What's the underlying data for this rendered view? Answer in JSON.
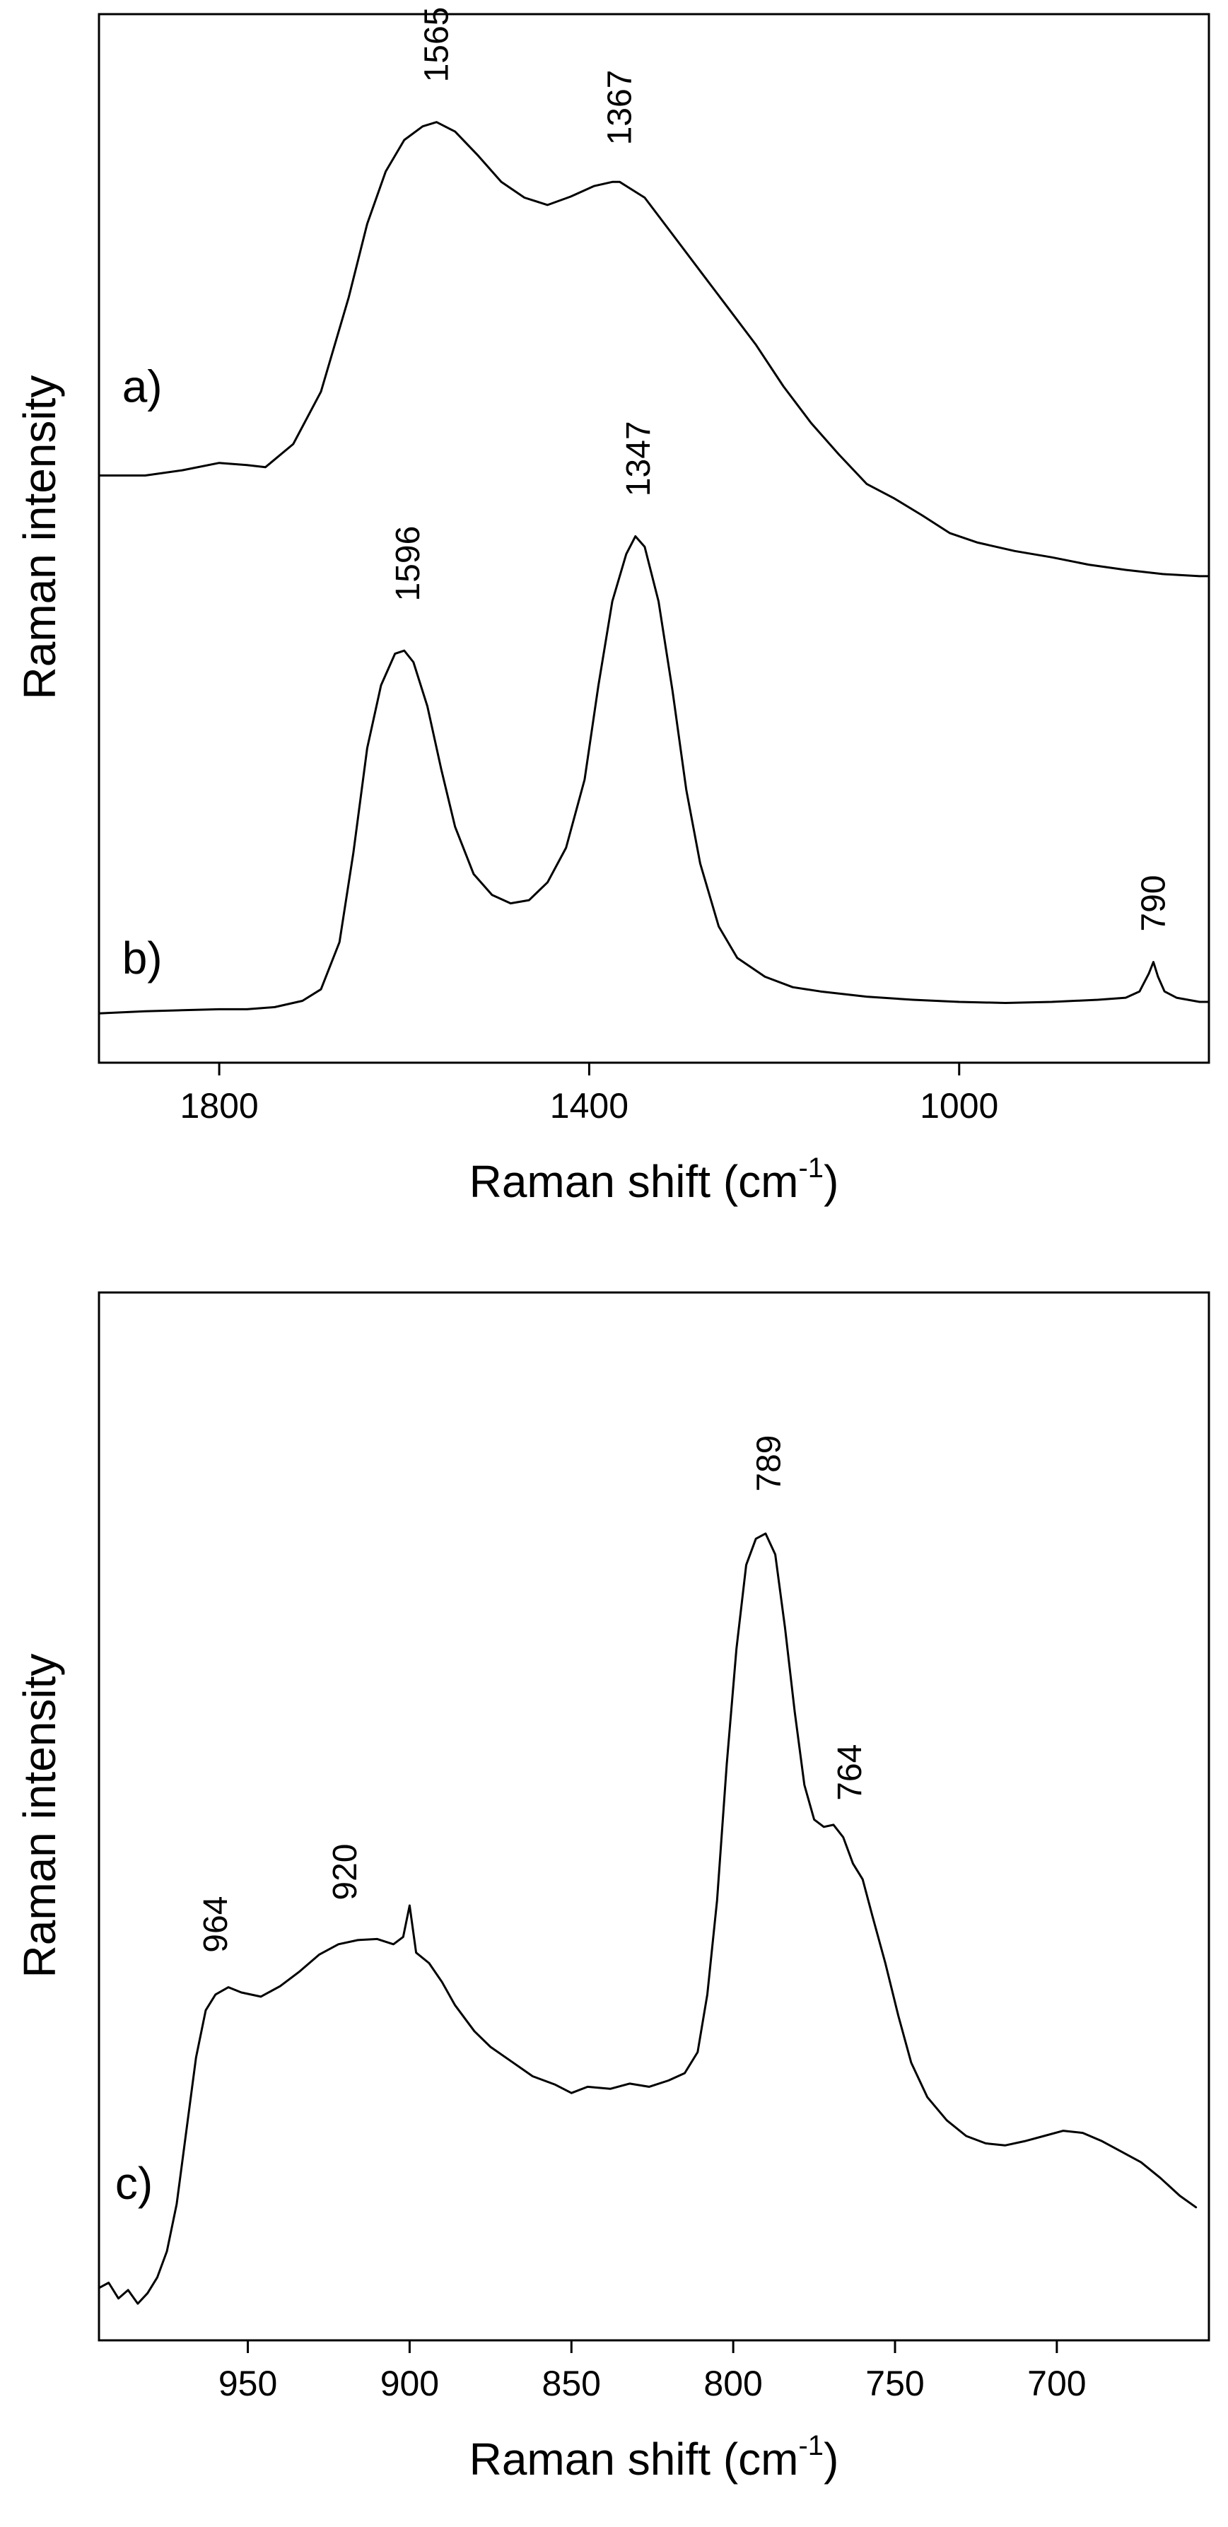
{
  "chart_data": [
    {
      "type": "line",
      "panel": "top",
      "xlabel": "Raman shift (cm",
      "xlabel_sup": "-1",
      "xlabel_close": ")",
      "ylabel": "Raman intensity",
      "xlim": [
        1930,
        730
      ],
      "ylim": [
        0,
        1
      ],
      "x_reversed": true,
      "grid": false,
      "xticks": [
        1800,
        1400,
        1000
      ],
      "series": [
        {
          "name": "a)",
          "label": "a)",
          "label_at": [
            1905,
            0.63
          ],
          "points": [
            [
              1930,
              0.56
            ],
            [
              1880,
              0.56
            ],
            [
              1840,
              0.565
            ],
            [
              1800,
              0.572
            ],
            [
              1770,
              0.57
            ],
            [
              1750,
              0.568
            ],
            [
              1720,
              0.59
            ],
            [
              1690,
              0.64
            ],
            [
              1660,
              0.73
            ],
            [
              1640,
              0.8
            ],
            [
              1620,
              0.85
            ],
            [
              1600,
              0.88
            ],
            [
              1580,
              0.893
            ],
            [
              1565,
              0.897
            ],
            [
              1545,
              0.888
            ],
            [
              1520,
              0.865
            ],
            [
              1495,
              0.84
            ],
            [
              1470,
              0.825
            ],
            [
              1445,
              0.818
            ],
            [
              1420,
              0.826
            ],
            [
              1395,
              0.836
            ],
            [
              1375,
              0.84
            ],
            [
              1367,
              0.84
            ],
            [
              1340,
              0.825
            ],
            [
              1310,
              0.79
            ],
            [
              1280,
              0.755
            ],
            [
              1250,
              0.72
            ],
            [
              1220,
              0.685
            ],
            [
              1190,
              0.645
            ],
            [
              1160,
              0.61
            ],
            [
              1130,
              0.58
            ],
            [
              1100,
              0.552
            ],
            [
              1070,
              0.538
            ],
            [
              1040,
              0.522
            ],
            [
              1010,
              0.505
            ],
            [
              980,
              0.496
            ],
            [
              940,
              0.488
            ],
            [
              900,
              0.482
            ],
            [
              860,
              0.475
            ],
            [
              820,
              0.47
            ],
            [
              780,
              0.466
            ],
            [
              740,
              0.464
            ],
            [
              730,
              0.464
            ]
          ]
        },
        {
          "name": "b)",
          "label": "b)",
          "label_at": [
            1905,
            0.085
          ],
          "points": [
            [
              1930,
              0.047
            ],
            [
              1880,
              0.049
            ],
            [
              1840,
              0.05
            ],
            [
              1800,
              0.051
            ],
            [
              1770,
              0.051
            ],
            [
              1740,
              0.053
            ],
            [
              1710,
              0.059
            ],
            [
              1690,
              0.07
            ],
            [
              1670,
              0.115
            ],
            [
              1655,
              0.2
            ],
            [
              1640,
              0.3
            ],
            [
              1625,
              0.36
            ],
            [
              1610,
              0.39
            ],
            [
              1600,
              0.393
            ],
            [
              1590,
              0.382
            ],
            [
              1575,
              0.34
            ],
            [
              1560,
              0.28
            ],
            [
              1545,
              0.225
            ],
            [
              1525,
              0.18
            ],
            [
              1505,
              0.16
            ],
            [
              1485,
              0.152
            ],
            [
              1465,
              0.155
            ],
            [
              1445,
              0.172
            ],
            [
              1425,
              0.205
            ],
            [
              1405,
              0.27
            ],
            [
              1390,
              0.36
            ],
            [
              1375,
              0.44
            ],
            [
              1360,
              0.485
            ],
            [
              1350,
              0.502
            ],
            [
              1340,
              0.492
            ],
            [
              1325,
              0.44
            ],
            [
              1310,
              0.355
            ],
            [
              1295,
              0.26
            ],
            [
              1280,
              0.19
            ],
            [
              1260,
              0.13
            ],
            [
              1240,
              0.1
            ],
            [
              1210,
              0.082
            ],
            [
              1180,
              0.072
            ],
            [
              1150,
              0.068
            ],
            [
              1100,
              0.063
            ],
            [
              1050,
              0.06
            ],
            [
              1000,
              0.058
            ],
            [
              950,
              0.057
            ],
            [
              900,
              0.058
            ],
            [
              850,
              0.06
            ],
            [
              820,
              0.062
            ],
            [
              805,
              0.068
            ],
            [
              795,
              0.085
            ],
            [
              790,
              0.096
            ],
            [
              785,
              0.082
            ],
            [
              778,
              0.068
            ],
            [
              765,
              0.062
            ],
            [
              740,
              0.058
            ],
            [
              730,
              0.058
            ]
          ]
        }
      ],
      "peak_labels": [
        {
          "text": "1565",
          "x": 1565,
          "y": 0.935
        },
        {
          "text": "1367",
          "x": 1367,
          "y": 0.875
        },
        {
          "text": "1596",
          "x": 1596,
          "y": 0.44
        },
        {
          "text": "1347",
          "x": 1347,
          "y": 0.54
        },
        {
          "text": "790",
          "x": 790,
          "y": 0.125
        }
      ]
    },
    {
      "type": "line",
      "panel": "bottom",
      "xlabel": "Raman shift (cm",
      "xlabel_sup": "-1",
      "xlabel_close": ")",
      "ylabel": "Raman intensity",
      "xlim": [
        996,
        653
      ],
      "ylim": [
        0,
        1
      ],
      "x_reversed": true,
      "grid": false,
      "xticks": [
        950,
        900,
        850,
        800,
        750,
        700
      ],
      "series": [
        {
          "name": "c)",
          "label": "c)",
          "label_at": [
            991,
            0.135
          ],
          "points": [
            [
              996,
              0.05
            ],
            [
              993,
              0.055
            ],
            [
              990,
              0.04
            ],
            [
              987,
              0.048
            ],
            [
              984,
              0.035
            ],
            [
              981,
              0.045
            ],
            [
              978,
              0.06
            ],
            [
              975,
              0.085
            ],
            [
              972,
              0.13
            ],
            [
              969,
              0.2
            ],
            [
              966,
              0.27
            ],
            [
              963,
              0.315
            ],
            [
              960,
              0.33
            ],
            [
              956,
              0.337
            ],
            [
              952,
              0.332
            ],
            [
              946,
              0.328
            ],
            [
              940,
              0.338
            ],
            [
              934,
              0.352
            ],
            [
              928,
              0.368
            ],
            [
              922,
              0.378
            ],
            [
              916,
              0.382
            ],
            [
              910,
              0.383
            ],
            [
              905,
              0.378
            ],
            [
              902,
              0.385
            ],
            [
              900,
              0.415
            ],
            [
              898,
              0.37
            ],
            [
              894,
              0.36
            ],
            [
              890,
              0.342
            ],
            [
              886,
              0.32
            ],
            [
              880,
              0.295
            ],
            [
              875,
              0.28
            ],
            [
              868,
              0.265
            ],
            [
              862,
              0.252
            ],
            [
              855,
              0.244
            ],
            [
              850,
              0.236
            ],
            [
              845,
              0.242
            ],
            [
              838,
              0.24
            ],
            [
              832,
              0.245
            ],
            [
              826,
              0.242
            ],
            [
              820,
              0.248
            ],
            [
              815,
              0.255
            ],
            [
              811,
              0.275
            ],
            [
              808,
              0.33
            ],
            [
              805,
              0.42
            ],
            [
              802,
              0.55
            ],
            [
              799,
              0.66
            ],
            [
              796,
              0.74
            ],
            [
              793,
              0.765
            ],
            [
              790,
              0.77
            ],
            [
              787,
              0.75
            ],
            [
              784,
              0.68
            ],
            [
              781,
              0.6
            ],
            [
              778,
              0.53
            ],
            [
              775,
              0.497
            ],
            [
              772,
              0.49
            ],
            [
              769,
              0.492
            ],
            [
              766,
              0.48
            ],
            [
              763,
              0.455
            ],
            [
              760,
              0.44
            ],
            [
              757,
              0.405
            ],
            [
              753,
              0.36
            ],
            [
              749,
              0.31
            ],
            [
              745,
              0.265
            ],
            [
              740,
              0.232
            ],
            [
              734,
              0.21
            ],
            [
              728,
              0.195
            ],
            [
              722,
              0.188
            ],
            [
              716,
              0.186
            ],
            [
              710,
              0.19
            ],
            [
              704,
              0.195
            ],
            [
              698,
              0.2
            ],
            [
              692,
              0.198
            ],
            [
              686,
              0.19
            ],
            [
              680,
              0.18
            ],
            [
              674,
              0.17
            ],
            [
              668,
              0.155
            ],
            [
              662,
              0.138
            ],
            [
              657,
              0.127
            ]
          ]
        }
      ],
      "peak_labels": [
        {
          "text": "964",
          "x": 960,
          "y": 0.37
        },
        {
          "text": "920",
          "x": 920,
          "y": 0.42
        },
        {
          "text": "789",
          "x": 789,
          "y": 0.81
        },
        {
          "text": "764",
          "x": 764,
          "y": 0.515
        }
      ]
    }
  ]
}
